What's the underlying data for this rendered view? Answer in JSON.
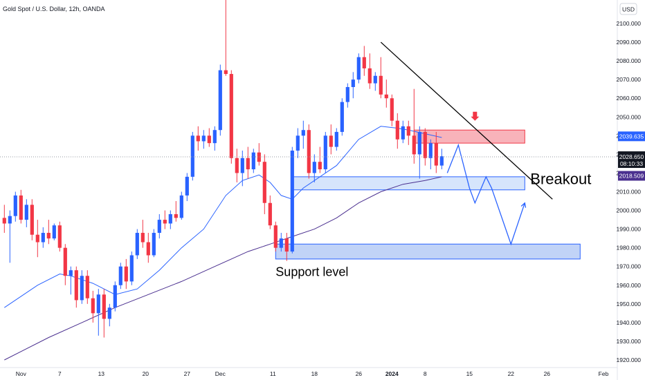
{
  "header": {
    "title": "Gold Spot / U.S. Dollar, 12h, OANDA",
    "currency": "USD"
  },
  "chart_data": {
    "type": "candlestick",
    "title": "Gold Spot / U.S. Dollar, 12h, OANDA",
    "y_axis": {
      "range": [
        1915,
        2118
      ],
      "ticks": [
        1920,
        1930,
        1940,
        1950,
        1960,
        1970,
        1980,
        1990,
        2000,
        2010,
        2020,
        2030,
        2040,
        2050,
        2060,
        2070,
        2080,
        2090,
        2100
      ],
      "tick_labels": [
        "1920.000",
        "1930.000",
        "1940.000",
        "1950.000",
        "1960.000",
        "1970.000",
        "1980.000",
        "1990.000",
        "2000.000",
        "2010.000",
        "2020.000",
        "2030.000",
        "2040.000",
        "2050.000",
        "2060.000",
        "2070.000",
        "2080.000",
        "2090.000",
        "2100.000"
      ]
    },
    "x_axis": {
      "range": [
        0,
        104
      ],
      "ticks": [
        {
          "label": "Nov",
          "x": 3
        },
        {
          "label": "7",
          "x": 10
        },
        {
          "label": "13",
          "x": 17.5
        },
        {
          "label": "20",
          "x": 25.5
        },
        {
          "label": "27",
          "x": 33
        },
        {
          "label": "Dec",
          "x": 39
        },
        {
          "label": "11",
          "x": 48.5
        },
        {
          "label": "18",
          "x": 56
        },
        {
          "label": "26",
          "x": 64
        },
        {
          "label": "2024",
          "x": 70,
          "bold": true
        },
        {
          "label": "8",
          "x": 76
        },
        {
          "label": "15",
          "x": 84
        },
        {
          "label": "22",
          "x": 91.5
        },
        {
          "label": "26",
          "x": 98
        }
      ],
      "extra_labels": [
        {
          "label": "Feb",
          "pixel_hint": "right-edge"
        }
      ]
    },
    "series": [
      {
        "name": "",
        "kind": "ohlc",
        "up_color": "#2962ff",
        "down_color": "#f23645",
        "values": [
          {
            "t": 0,
            "o": 1996,
            "h": 2003,
            "l": 1988,
            "c": 1993
          },
          {
            "t": 1,
            "o": 1993,
            "h": 2000,
            "l": 1972,
            "c": 1997
          },
          {
            "t": 2,
            "o": 1997,
            "h": 2010,
            "l": 1994,
            "c": 2008
          },
          {
            "t": 3,
            "o": 2008,
            "h": 2011,
            "l": 1993,
            "c": 1995
          },
          {
            "t": 4,
            "o": 1995,
            "h": 2006,
            "l": 1991,
            "c": 2003
          },
          {
            "t": 5,
            "o": 2003,
            "h": 2006,
            "l": 1984,
            "c": 1987
          },
          {
            "t": 6,
            "o": 1987,
            "h": 1995,
            "l": 1975,
            "c": 1983
          },
          {
            "t": 7,
            "o": 1983,
            "h": 1991,
            "l": 1980,
            "c": 1988
          },
          {
            "t": 8,
            "o": 1988,
            "h": 1995,
            "l": 1982,
            "c": 1985
          },
          {
            "t": 9,
            "o": 1985,
            "h": 1993,
            "l": 1984,
            "c": 1992
          },
          {
            "t": 10,
            "o": 1992,
            "h": 1994,
            "l": 1978,
            "c": 1980
          },
          {
            "t": 11,
            "o": 1980,
            "h": 1982,
            "l": 1960,
            "c": 1965
          },
          {
            "t": 12,
            "o": 1965,
            "h": 1970,
            "l": 1955,
            "c": 1968
          },
          {
            "t": 13,
            "o": 1968,
            "h": 1970,
            "l": 1948,
            "c": 1952
          },
          {
            "t": 14,
            "o": 1952,
            "h": 1968,
            "l": 1950,
            "c": 1965
          },
          {
            "t": 15,
            "o": 1965,
            "h": 1968,
            "l": 1950,
            "c": 1953
          },
          {
            "t": 16,
            "o": 1953,
            "h": 1957,
            "l": 1940,
            "c": 1945
          },
          {
            "t": 17,
            "o": 1945,
            "h": 1958,
            "l": 1933,
            "c": 1955
          },
          {
            "t": 18,
            "o": 1955,
            "h": 1958,
            "l": 1932,
            "c": 1942
          },
          {
            "t": 19,
            "o": 1942,
            "h": 1950,
            "l": 1938,
            "c": 1948
          },
          {
            "t": 20,
            "o": 1948,
            "h": 1962,
            "l": 1946,
            "c": 1960
          },
          {
            "t": 21,
            "o": 1960,
            "h": 1972,
            "l": 1958,
            "c": 1970
          },
          {
            "t": 22,
            "o": 1970,
            "h": 1974,
            "l": 1958,
            "c": 1962
          },
          {
            "t": 23,
            "o": 1962,
            "h": 1978,
            "l": 1960,
            "c": 1976
          },
          {
            "t": 24,
            "o": 1976,
            "h": 1990,
            "l": 1974,
            "c": 1988
          },
          {
            "t": 25,
            "o": 1988,
            "h": 1995,
            "l": 1980,
            "c": 1983
          },
          {
            "t": 26,
            "o": 1983,
            "h": 1988,
            "l": 1972,
            "c": 1976
          },
          {
            "t": 27,
            "o": 1976,
            "h": 1990,
            "l": 1975,
            "c": 1988
          },
          {
            "t": 28,
            "o": 1988,
            "h": 1998,
            "l": 1985,
            "c": 1995
          },
          {
            "t": 29,
            "o": 1995,
            "h": 2000,
            "l": 1990,
            "c": 1993
          },
          {
            "t": 30,
            "o": 1993,
            "h": 2000,
            "l": 1990,
            "c": 1998
          },
          {
            "t": 31,
            "o": 1998,
            "h": 2005,
            "l": 1994,
            "c": 1996
          },
          {
            "t": 32,
            "o": 1996,
            "h": 2010,
            "l": 1995,
            "c": 2008
          },
          {
            "t": 33,
            "o": 2008,
            "h": 2020,
            "l": 2005,
            "c": 2018
          },
          {
            "t": 34,
            "o": 2018,
            "h": 2042,
            "l": 2016,
            "c": 2040
          },
          {
            "t": 35,
            "o": 2040,
            "h": 2045,
            "l": 2032,
            "c": 2037
          },
          {
            "t": 36,
            "o": 2037,
            "h": 2043,
            "l": 2033,
            "c": 2040
          },
          {
            "t": 37,
            "o": 2040,
            "h": 2044,
            "l": 2034,
            "c": 2036
          },
          {
            "t": 38,
            "o": 2036,
            "h": 2045,
            "l": 2032,
            "c": 2043
          },
          {
            "t": 39,
            "o": 2043,
            "h": 2078,
            "l": 2040,
            "c": 2075
          },
          {
            "t": 40,
            "o": 2075,
            "h": 2148,
            "l": 2072,
            "c": 2073
          },
          {
            "t": 41,
            "o": 2073,
            "h": 2075,
            "l": 2025,
            "c": 2028
          },
          {
            "t": 42,
            "o": 2028,
            "h": 2033,
            "l": 2015,
            "c": 2020
          },
          {
            "t": 43,
            "o": 2020,
            "h": 2032,
            "l": 2013,
            "c": 2028
          },
          {
            "t": 44,
            "o": 2028,
            "h": 2034,
            "l": 2017,
            "c": 2022
          },
          {
            "t": 45,
            "o": 2022,
            "h": 2033,
            "l": 2020,
            "c": 2031
          },
          {
            "t": 46,
            "o": 2031,
            "h": 2036,
            "l": 2024,
            "c": 2026
          },
          {
            "t": 47,
            "o": 2026,
            "h": 2030,
            "l": 1998,
            "c": 2004
          },
          {
            "t": 48,
            "o": 2004,
            "h": 2008,
            "l": 1990,
            "c": 1992
          },
          {
            "t": 49,
            "o": 1992,
            "h": 1994,
            "l": 1978,
            "c": 1980
          },
          {
            "t": 50,
            "o": 1980,
            "h": 1988,
            "l": 1978,
            "c": 1985
          },
          {
            "t": 51,
            "o": 1985,
            "h": 1988,
            "l": 1973,
            "c": 1978
          },
          {
            "t": 52,
            "o": 1978,
            "h": 2034,
            "l": 1977,
            "c": 2032
          },
          {
            "t": 53,
            "o": 2032,
            "h": 2044,
            "l": 2028,
            "c": 2040
          },
          {
            "t": 54,
            "o": 2040,
            "h": 2048,
            "l": 2033,
            "c": 2043
          },
          {
            "t": 55,
            "o": 2043,
            "h": 2046,
            "l": 2017,
            "c": 2020
          },
          {
            "t": 56,
            "o": 2020,
            "h": 2030,
            "l": 2015,
            "c": 2026
          },
          {
            "t": 57,
            "o": 2026,
            "h": 2034,
            "l": 2020,
            "c": 2022
          },
          {
            "t": 58,
            "o": 2022,
            "h": 2042,
            "l": 2020,
            "c": 2040
          },
          {
            "t": 59,
            "o": 2040,
            "h": 2046,
            "l": 2030,
            "c": 2034
          },
          {
            "t": 60,
            "o": 2034,
            "h": 2044,
            "l": 2032,
            "c": 2042
          },
          {
            "t": 61,
            "o": 2042,
            "h": 2060,
            "l": 2040,
            "c": 2058
          },
          {
            "t": 62,
            "o": 2058,
            "h": 2068,
            "l": 2055,
            "c": 2066
          },
          {
            "t": 63,
            "o": 2066,
            "h": 2074,
            "l": 2060,
            "c": 2070
          },
          {
            "t": 64,
            "o": 2070,
            "h": 2084,
            "l": 2068,
            "c": 2082
          },
          {
            "t": 65,
            "o": 2082,
            "h": 2088,
            "l": 2072,
            "c": 2076
          },
          {
            "t": 66,
            "o": 2076,
            "h": 2084,
            "l": 2065,
            "c": 2068
          },
          {
            "t": 67,
            "o": 2068,
            "h": 2074,
            "l": 2064,
            "c": 2072
          },
          {
            "t": 68,
            "o": 2072,
            "h": 2082,
            "l": 2060,
            "c": 2062
          },
          {
            "t": 69,
            "o": 2062,
            "h": 2070,
            "l": 2055,
            "c": 2060
          },
          {
            "t": 70,
            "o": 2060,
            "h": 2062,
            "l": 2045,
            "c": 2048
          },
          {
            "t": 71,
            "o": 2048,
            "h": 2052,
            "l": 2033,
            "c": 2038
          },
          {
            "t": 72,
            "o": 2038,
            "h": 2048,
            "l": 2036,
            "c": 2045
          },
          {
            "t": 73,
            "o": 2045,
            "h": 2048,
            "l": 2035,
            "c": 2040
          },
          {
            "t": 74,
            "o": 2040,
            "h": 2065,
            "l": 2025,
            "c": 2030
          },
          {
            "t": 75,
            "o": 2030,
            "h": 2045,
            "l": 2017,
            "c": 2042
          },
          {
            "t": 76,
            "o": 2042,
            "h": 2044,
            "l": 2024,
            "c": 2028
          },
          {
            "t": 77,
            "o": 2028,
            "h": 2038,
            "l": 2022,
            "c": 2036
          },
          {
            "t": 78,
            "o": 2036,
            "h": 2042,
            "l": 2020,
            "c": 2024
          },
          {
            "t": 79,
            "o": 2024,
            "h": 2033,
            "l": 2022,
            "c": 2029
          }
        ]
      },
      {
        "name": "",
        "kind": "line",
        "color": "#2962ff",
        "values": [
          [
            0,
            1948
          ],
          [
            6,
            1960
          ],
          [
            10,
            1966
          ],
          [
            12,
            1965
          ],
          [
            16,
            1961
          ],
          [
            20,
            1955
          ],
          [
            24,
            1958
          ],
          [
            28,
            1968
          ],
          [
            32,
            1980
          ],
          [
            36,
            1990
          ],
          [
            40,
            2008
          ],
          [
            43,
            2016
          ],
          [
            46,
            2019
          ],
          [
            48,
            2015
          ],
          [
            50,
            2008
          ],
          [
            52,
            2006
          ],
          [
            54,
            2012
          ],
          [
            56,
            2016
          ],
          [
            60,
            2024
          ],
          [
            64,
            2038
          ],
          [
            68,
            2045
          ],
          [
            71,
            2044
          ],
          [
            73,
            2043
          ],
          [
            76,
            2041
          ],
          [
            79,
            2039
          ]
        ]
      },
      {
        "name": "",
        "kind": "line",
        "color": "#4a2f8f",
        "values": [
          [
            0,
            1920
          ],
          [
            8,
            1932
          ],
          [
            14,
            1940
          ],
          [
            20,
            1948
          ],
          [
            26,
            1955
          ],
          [
            32,
            1962
          ],
          [
            38,
            1970
          ],
          [
            44,
            1978
          ],
          [
            48,
            1982
          ],
          [
            52,
            1986
          ],
          [
            56,
            1990
          ],
          [
            60,
            1996
          ],
          [
            64,
            2004
          ],
          [
            68,
            2010
          ],
          [
            72,
            2014
          ],
          [
            76,
            2016
          ],
          [
            79,
            2018
          ]
        ]
      }
    ],
    "last_price": {
      "value": 2028.65,
      "label": "2028.650",
      "countdown": "08:10:33"
    },
    "price_labels": [
      {
        "value": 2039.635,
        "label": "2039.635",
        "color": "#2962ff"
      },
      {
        "value": 2018.509,
        "label": "2018.509",
        "color": "#4a2f8f"
      }
    ],
    "zones": [
      {
        "x0": 74,
        "x1": 94,
        "y0": 2036,
        "y1": 2043,
        "fill": "#f7a6ae",
        "stroke": "#f23645"
      },
      {
        "x0": 52,
        "x1": 94,
        "y0": 2011,
        "y1": 2018,
        "fill": "#cfe0fb",
        "stroke": "#2962ff"
      },
      {
        "x0": 49,
        "x1": 104,
        "y0": 1974,
        "y1": 1982,
        "fill": "#b6cbf6",
        "stroke": "#2962ff"
      }
    ],
    "trendline": {
      "x0": 68,
      "y0": 2090,
      "x1": 99,
      "y1": 2006,
      "color": "#000000"
    },
    "projection": {
      "color": "#2962ff",
      "points": [
        [
          80,
          2020
        ],
        [
          82,
          2035
        ],
        [
          84,
          2012
        ],
        [
          85,
          2004
        ],
        [
          87,
          2018
        ],
        [
          88,
          2012
        ],
        [
          91.5,
          1982
        ],
        [
          94,
          2004
        ]
      ]
    },
    "marker_arrow": {
      "x": 85,
      "y": 2048,
      "color": "#f23645"
    },
    "annotations": [
      {
        "text": "Breakout",
        "x": 95,
        "y": 2014,
        "size": 22
      },
      {
        "text": "Support level",
        "x": 49,
        "y": 1965,
        "size": 18
      }
    ]
  }
}
